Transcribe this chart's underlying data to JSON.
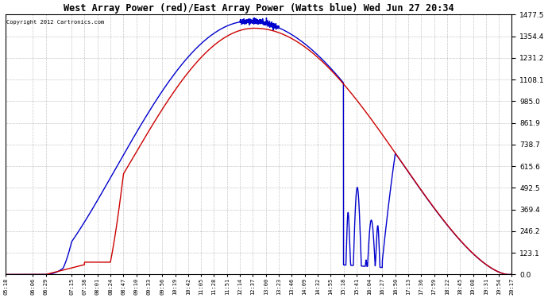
{
  "title": "West Array Power (red)/East Array Power (Watts blue) Wed Jun 27 20:34",
  "copyright": "Copyright 2012 Cartronics.com",
  "background_color": "#ffffff",
  "plot_bg_color": "#ffffff",
  "grid_color": "#999999",
  "ymax": 1477.5,
  "ymin": 0.0,
  "yticks": [
    0.0,
    123.1,
    246.2,
    369.4,
    492.5,
    615.6,
    738.7,
    861.9,
    985.0,
    1108.1,
    1231.2,
    1354.4,
    1477.5
  ],
  "x_labels": [
    "05:18",
    "06:06",
    "06:29",
    "07:15",
    "07:38",
    "08:01",
    "08:24",
    "08:47",
    "09:10",
    "09:33",
    "09:56",
    "10:19",
    "10:42",
    "11:05",
    "11:28",
    "11:51",
    "12:14",
    "12:37",
    "13:00",
    "13:23",
    "13:46",
    "14:09",
    "14:32",
    "14:55",
    "15:18",
    "15:41",
    "16:04",
    "16:27",
    "16:50",
    "17:13",
    "17:36",
    "17:59",
    "18:22",
    "18:45",
    "19:08",
    "19:31",
    "19:54",
    "20:17"
  ],
  "red_line_color": "#cc0000",
  "blue_line_color": "#0000cc",
  "line_width": 1.0,
  "figsize": [
    6.9,
    3.75
  ],
  "dpi": 100
}
